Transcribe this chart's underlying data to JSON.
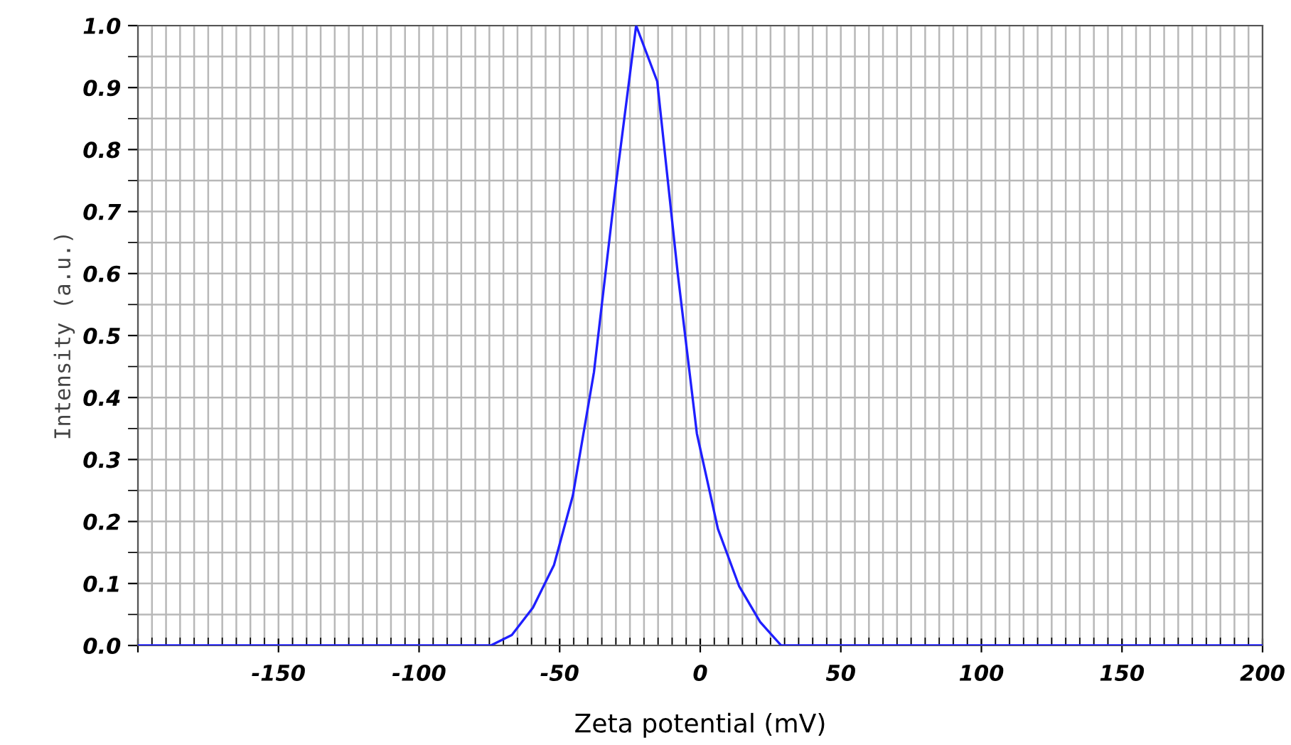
{
  "chart_data": {
    "type": "line",
    "xlabel": "Zeta potential (mV)",
    "ylabel": "Intensity (a.u.)",
    "x": [
      -200,
      -74.5,
      -67,
      -59.5,
      -52,
      -45.3,
      -37.8,
      -30.3,
      -22.8,
      -15.3,
      -8,
      -1.2,
      6.3,
      13.8,
      21.3,
      28.8,
      200
    ],
    "series": [
      {
        "color": "#1f1fff",
        "values": [
          0,
          0,
          0.017,
          0.061,
          0.13,
          0.242,
          0.441,
          0.733,
          1.0,
          0.91,
          0.6,
          0.342,
          0.188,
          0.096,
          0.038,
          0,
          0
        ]
      }
    ],
    "xlim": [
      -200,
      200
    ],
    "ylim": [
      0,
      1
    ],
    "xticks": [
      {
        "value": -200,
        "label": null
      },
      -150,
      -100,
      -50,
      0,
      50,
      100,
      150,
      200
    ],
    "yticks": [
      {
        "value": 0,
        "label": "0.0"
      },
      0.1,
      0.2,
      0.3,
      0.4,
      0.5,
      0.6,
      0.7,
      0.8,
      0.9,
      {
        "value": 1,
        "label": "1.0"
      }
    ],
    "grid": true,
    "legend": false,
    "marker": "none",
    "line_style": "solid"
  }
}
